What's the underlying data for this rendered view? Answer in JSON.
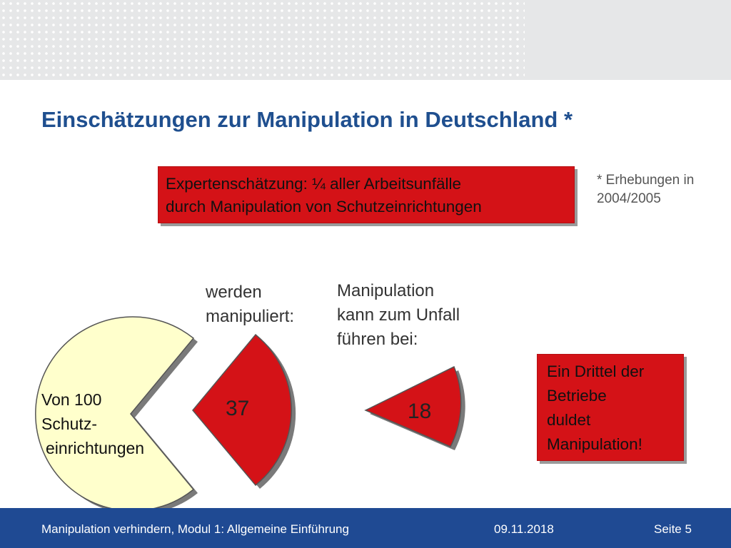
{
  "title": "Einschätzungen zur Manipulation in Deutschland *",
  "footnote": [
    "* Erhebungen in",
    "2004/2005"
  ],
  "expert_box": [
    "Expertenschätzung: ¼ aller Arbeitsunfälle",
    "durch Manipulation von Schutzeinrichtungen"
  ],
  "labels": {
    "werden": [
      "werden",
      "manipuliert:"
    ],
    "unfall": [
      "Manipulation",
      "kann zum Unfall",
      "führen bei:"
    ]
  },
  "pie_text": [
    "Von 100",
    "Schutz-",
    "einrichtungen"
  ],
  "values": {
    "manipuliert": "37",
    "unfall": "18"
  },
  "drittel_box": [
    "Ein Drittel der",
    "Betriebe",
    "duldet",
    "Manipulation!"
  ],
  "footer": {
    "left": "Manipulation verhindern, Modul 1: Allgemeine Einführung",
    "date": "09.11.2018",
    "page": "Seite 5"
  },
  "colors": {
    "title": "#1f4f8f",
    "red": "#d41217",
    "pie_yellow": "#ffffcc",
    "footer": "#1f4a93"
  }
}
